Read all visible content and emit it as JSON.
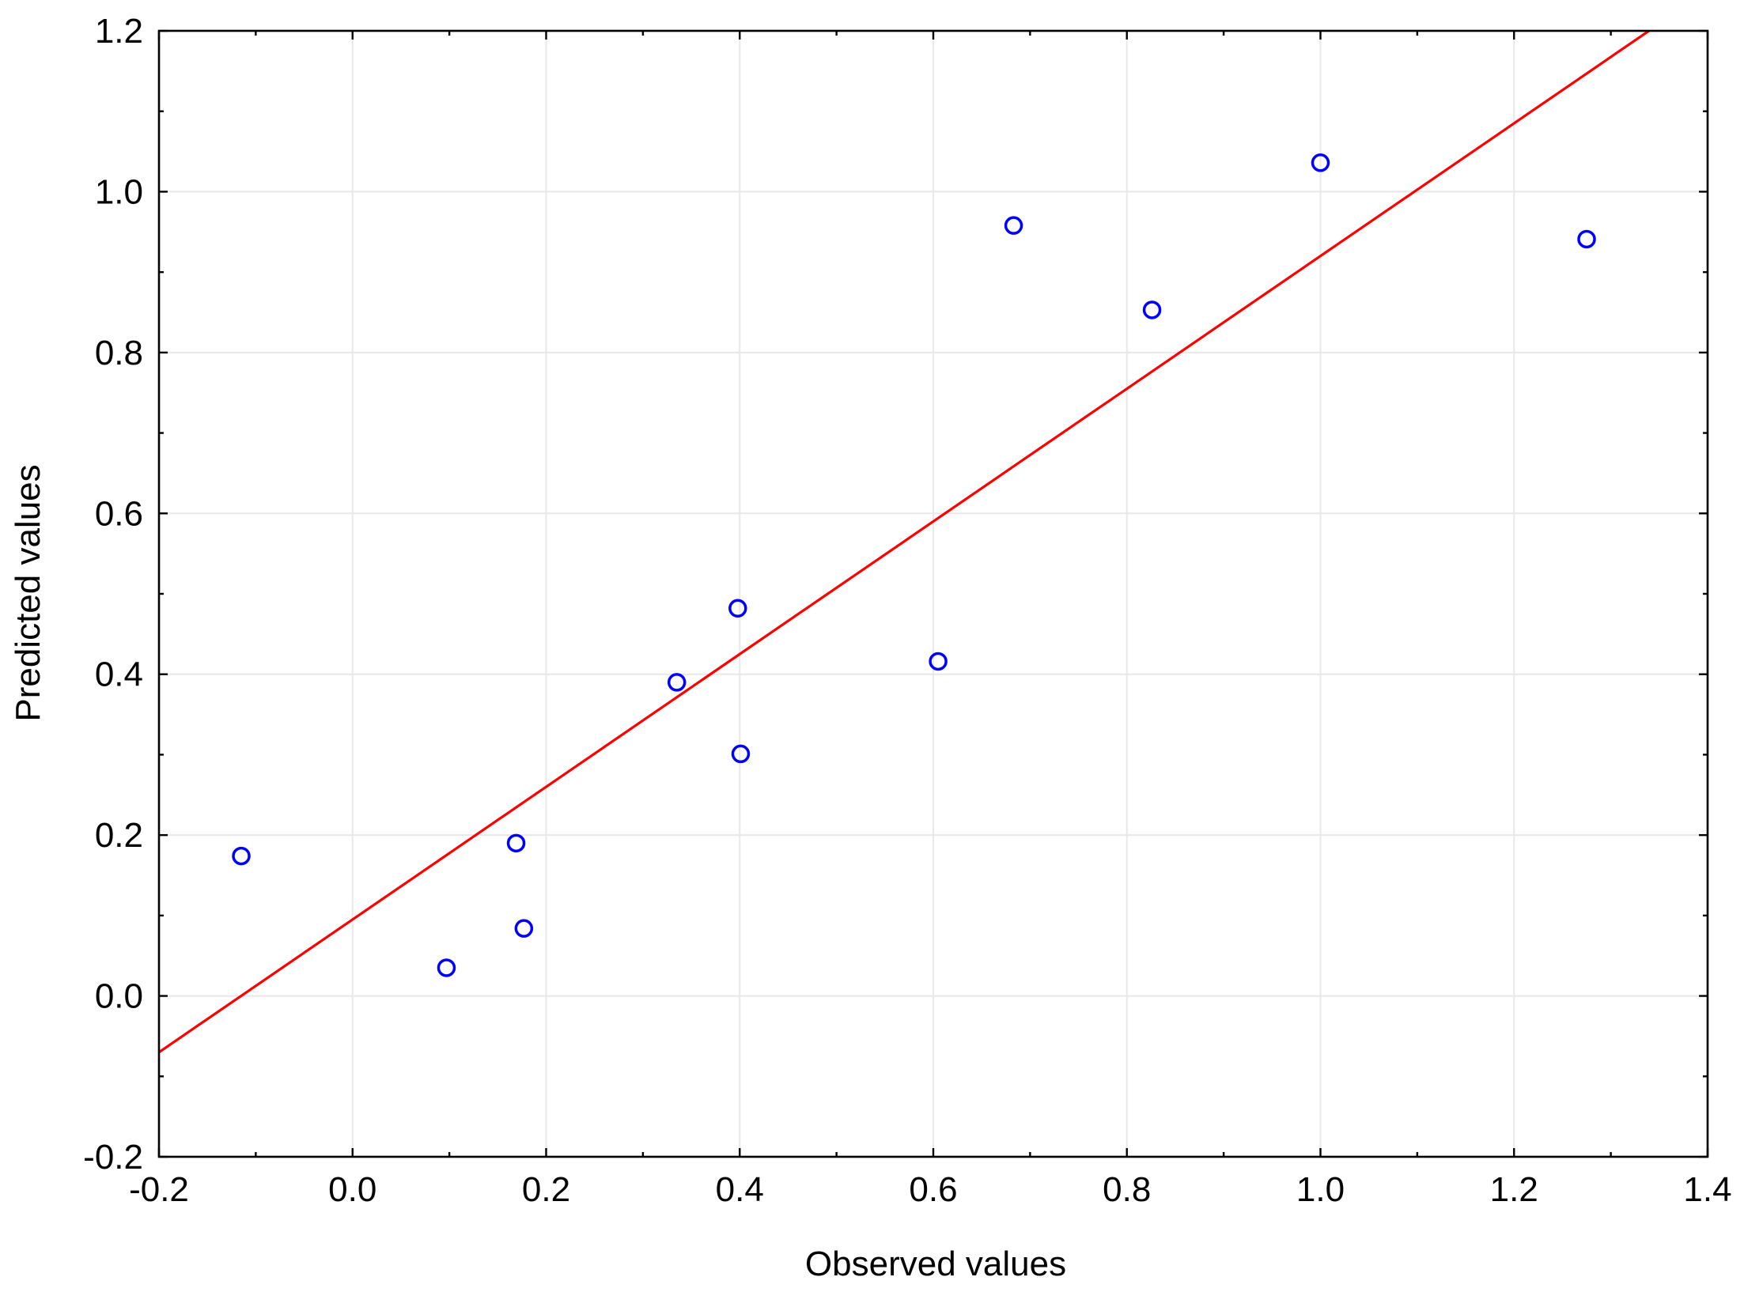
{
  "chart_data": {
    "type": "scatter",
    "title": "",
    "xlabel": "Observed values",
    "ylabel": "Predicted values",
    "xlim": [
      -0.2,
      1.4
    ],
    "ylim": [
      -0.2,
      1.2
    ],
    "x_ticks": [
      "-0.2",
      "0.0",
      "0.2",
      "0.4",
      "0.6",
      "0.8",
      "1.0",
      "1.2",
      "1.4"
    ],
    "y_ticks": [
      "-0.2",
      "0.0",
      "0.2",
      "0.4",
      "0.6",
      "0.8",
      "1.0",
      "1.2"
    ],
    "grid": true,
    "legend": "none",
    "points": [
      {
        "x": -0.115,
        "y": 0.174
      },
      {
        "x": 0.097,
        "y": 0.035
      },
      {
        "x": 0.169,
        "y": 0.19
      },
      {
        "x": 0.177,
        "y": 0.084
      },
      {
        "x": 0.335,
        "y": 0.39
      },
      {
        "x": 0.398,
        "y": 0.482
      },
      {
        "x": 0.401,
        "y": 0.301
      },
      {
        "x": 0.605,
        "y": 0.416
      },
      {
        "x": 0.683,
        "y": 0.958
      },
      {
        "x": 0.826,
        "y": 0.853
      },
      {
        "x": 1.0,
        "y": 1.036
      },
      {
        "x": 1.275,
        "y": 0.941
      }
    ],
    "fit_line": {
      "slope": 0.825,
      "intercept": 0.095
    },
    "colors": {
      "points": "#0000ff",
      "fit_line": "#ff0000",
      "grid": "#e8e8e8",
      "axis": "#000000"
    }
  }
}
